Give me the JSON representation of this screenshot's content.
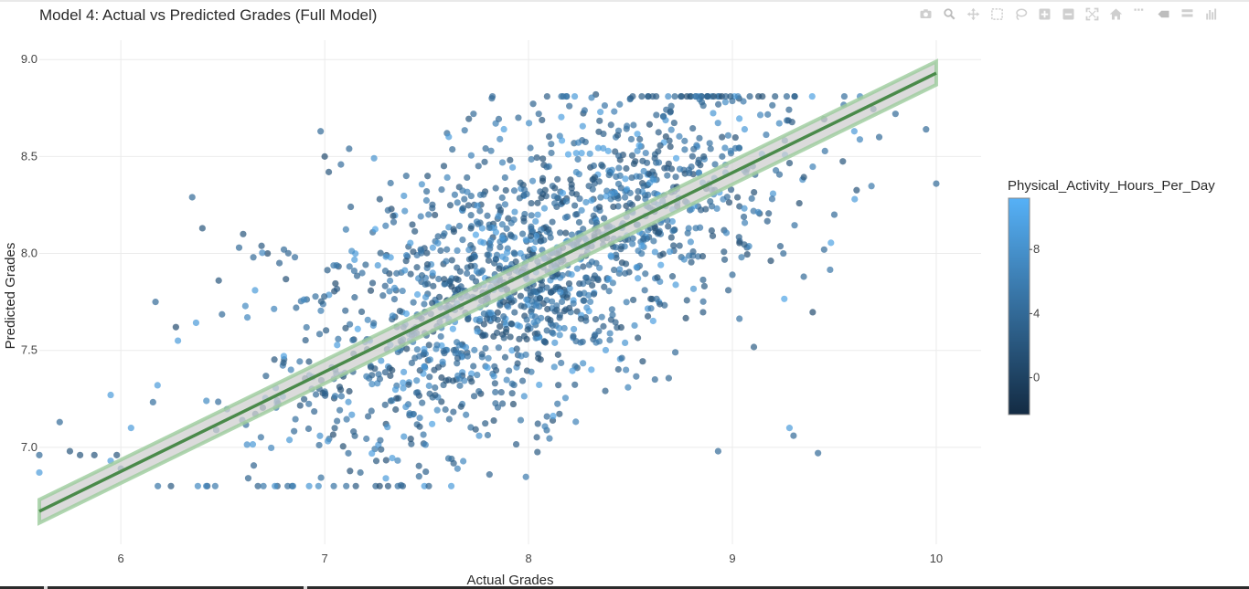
{
  "modebar": {
    "buttons": [
      {
        "name": "camera-icon"
      },
      {
        "name": "zoom-icon"
      },
      {
        "name": "pan-icon"
      },
      {
        "name": "box-select-icon"
      },
      {
        "name": "lasso-select-icon"
      },
      {
        "name": "zoom-in-icon"
      },
      {
        "name": "zoom-out-icon"
      },
      {
        "name": "autoscale-icon"
      },
      {
        "name": "home-icon"
      },
      {
        "name": "spike-lines-icon"
      },
      {
        "name": "compare-hover-icon"
      },
      {
        "name": "closest-hover-icon"
      },
      {
        "name": "plotly-logo-icon"
      }
    ]
  },
  "chart_data": {
    "type": "scatter",
    "title": "Model 4: Actual vs Predicted Grades (Full Model)",
    "xlabel": "Actual Grades",
    "ylabel": "Predicted Grades",
    "xlim": [
      5.6,
      10.22
    ],
    "ylim": [
      6.5,
      9.1
    ],
    "xticks": [
      6,
      7,
      8,
      9,
      10
    ],
    "xtick_labels": [
      "6",
      "7",
      "8",
      "9",
      "10"
    ],
    "yticks": [
      7.0,
      7.5,
      8.0,
      8.5,
      9.0
    ],
    "ytick_labels": [
      "7.0",
      "7.5",
      "8.0",
      "8.5",
      "9.0"
    ],
    "grid": true,
    "colorbar": {
      "title": "Physical_Activity_Hours_Per_Day",
      "min": -2.3,
      "max": 11.2,
      "ticks": [
        0,
        4,
        8
      ],
      "tick_labels": [
        "0",
        "4",
        "8"
      ],
      "colors": [
        "#132B43",
        "#56B1F7"
      ]
    },
    "fit_line": {
      "x": [
        5.6,
        10.0
      ],
      "y": [
        6.67,
        8.93
      ],
      "ci_halfwidth": 0.06,
      "line_color": "#4a8a4a",
      "band_color": "#9ccc9c"
    },
    "point_color_low": "#132B43",
    "point_color_high": "#56B1F7",
    "point_opacity": 0.7,
    "series": [
      {
        "x": [
          5.6,
          5.6,
          5.7,
          5.75,
          5.8,
          5.87,
          5.95,
          5.95,
          5.98,
          6.05,
          6.17,
          6.27,
          6.28,
          6.35,
          6.4,
          6.48,
          6.58,
          6.6,
          6.65,
          6.72,
          6.8,
          6.86,
          6.98,
          7.0,
          7.02,
          7.12,
          7.27,
          7.4,
          7.5,
          7.6,
          7.73,
          7.82,
          7.95,
          8.05,
          8.2,
          8.33,
          8.5,
          8.7,
          8.85,
          8.95,
          9.0,
          9.1,
          9.25,
          9.35,
          9.45,
          9.5,
          9.6,
          9.72,
          9.8,
          9.95,
          10.0,
          9.28,
          9.42,
          8.93,
          9.3,
          8.62,
          8.72,
          7.3,
          6.18,
          6.0
        ],
        "y": [
          6.96,
          6.87,
          7.13,
          6.98,
          6.96,
          6.96,
          6.93,
          7.27,
          6.96,
          7.1,
          7.75,
          7.62,
          7.55,
          8.29,
          8.13,
          7.86,
          8.03,
          8.1,
          7.98,
          8.0,
          8.02,
          7.72,
          8.63,
          8.5,
          8.42,
          8.54,
          8.28,
          8.4,
          8.32,
          8.62,
          8.72,
          8.8,
          8.7,
          8.72,
          8.76,
          8.82,
          8.8,
          8.76,
          8.78,
          8.5,
          7.89,
          8.45,
          8.0,
          7.88,
          8.02,
          8.2,
          8.28,
          8.6,
          8.72,
          8.64,
          8.36,
          7.1,
          6.97,
          6.98,
          7.06,
          7.35,
          7.49,
          6.84,
          7.32,
          6.89
        ],
        "color_values": [
          4,
          9,
          4,
          2,
          2,
          2,
          9,
          9,
          2,
          9,
          4,
          1,
          9,
          4,
          2,
          2,
          4,
          2,
          4,
          1,
          4,
          4,
          4,
          1,
          2,
          4,
          2,
          4,
          4,
          4,
          4,
          4,
          4,
          4,
          4,
          2,
          2,
          4,
          4,
          4,
          4,
          4,
          4,
          4,
          4,
          4,
          9,
          4,
          4,
          4,
          4,
          9,
          4,
          4,
          4,
          4,
          4,
          9,
          9,
          4
        ]
      }
    ]
  }
}
